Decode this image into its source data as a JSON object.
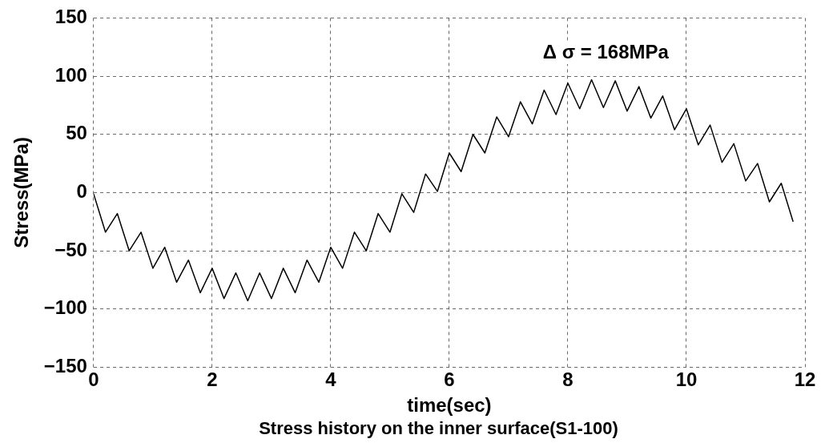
{
  "chart_data": {
    "type": "line",
    "xlabel": "time(sec)",
    "ylabel": "Stress(MPa)",
    "annotations": [
      "Δ σ = 168MPa",
      "Stress history on the inner surface(S1-100)"
    ],
    "xlim": [
      0,
      12
    ],
    "xticks": [
      0,
      2,
      4,
      6,
      8,
      10,
      12
    ],
    "ylim": [
      -150,
      150
    ],
    "yticks": [
      -150,
      -100,
      -50,
      0,
      50,
      100,
      150
    ],
    "grid": true,
    "marker": "none",
    "line_style": "solid",
    "legend": false,
    "series": [
      {
        "color": "#000000",
        "x": [
          0,
          0.2,
          0.4,
          0.6,
          0.8,
          1,
          1.2,
          1.4,
          1.6,
          1.8,
          2,
          2.2,
          2.4,
          2.6,
          2.8,
          3,
          3.2,
          3.4,
          3.6,
          3.8,
          4,
          4.2,
          4.4,
          4.6,
          4.8,
          5,
          5.2,
          5.4,
          5.6,
          5.8,
          6,
          6.2,
          6.4,
          6.6,
          6.8,
          7,
          7.2,
          7.4,
          7.6,
          7.8,
          8,
          8.2,
          8.4,
          8.6,
          8.8,
          9,
          9.2,
          9.4,
          9.6,
          9.8,
          10,
          10.2,
          10.4,
          10.6,
          10.8,
          11,
          11.2,
          11.4,
          11.6,
          11.8
        ],
        "values": [
          -1,
          -34,
          -18,
          -50,
          -34,
          -65,
          -47,
          -77,
          -58,
          -86,
          -65,
          -91,
          -69,
          -93,
          -69,
          -91,
          -65,
          -86,
          -58,
          -77,
          -47,
          -65,
          -34,
          -50,
          -18,
          -34,
          -1,
          -17,
          16,
          1,
          34,
          18,
          50,
          34,
          65,
          48,
          78,
          59,
          88,
          67,
          94,
          72,
          97,
          73,
          96,
          70,
          91,
          64,
          83,
          54,
          72,
          41,
          58,
          26,
          42,
          10,
          25,
          -8,
          8,
          -25
        ]
      }
    ]
  }
}
